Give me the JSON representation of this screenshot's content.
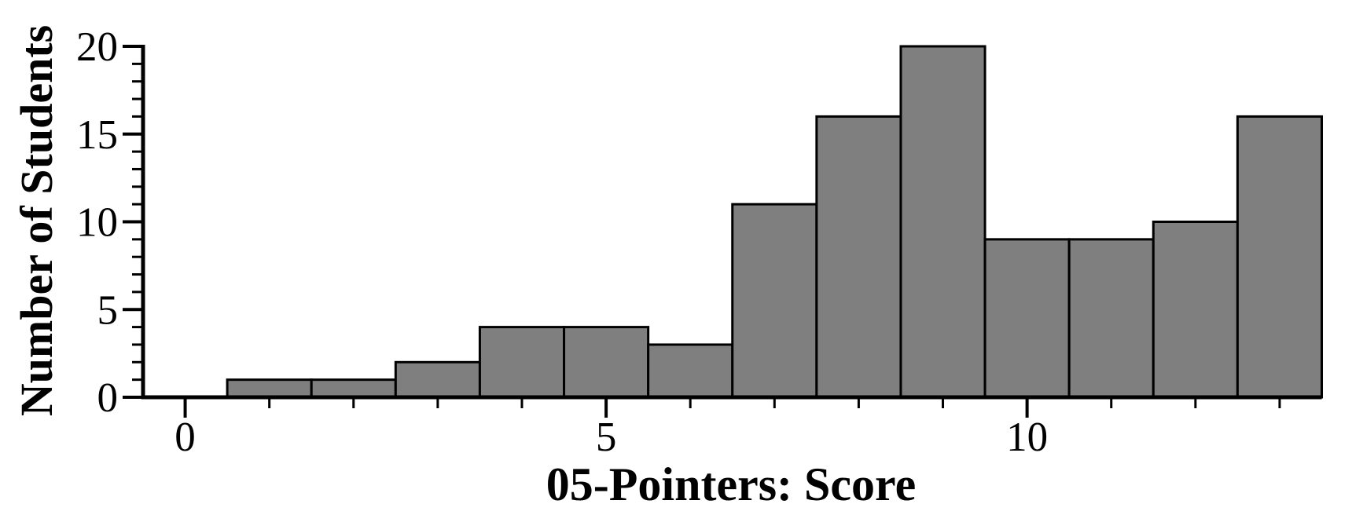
{
  "chart_data": {
    "type": "bar",
    "subtype": "histogram",
    "title": "",
    "xlabel": "05-Pointers: Score",
    "ylabel": "Number of Students",
    "bin_centers": [
      1,
      2,
      3,
      4,
      5,
      6,
      7,
      8,
      9,
      10,
      11,
      12,
      13
    ],
    "bin_width": 1,
    "values": [
      1,
      1,
      2,
      4,
      4,
      3,
      11,
      16,
      20,
      9,
      9,
      10,
      16
    ],
    "xlim": [
      -0.5,
      13.5
    ],
    "ylim": [
      0,
      20
    ],
    "x_major_ticks": [
      0,
      5,
      10
    ],
    "x_minor_tick_step": 1,
    "y_major_ticks": [
      0,
      5,
      10,
      15,
      20
    ],
    "y_minor_tick_step": 1,
    "grid": false,
    "legend": "none",
    "bar_fill": "#7f7f7f",
    "bar_stroke": "#000000",
    "axis_color": "#000000",
    "background": "#ffffff"
  }
}
